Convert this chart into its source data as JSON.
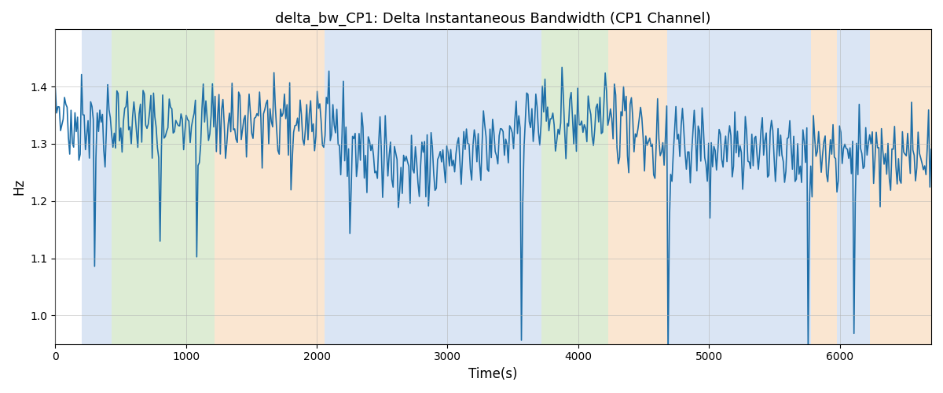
{
  "title": "delta_bw_CP1: Delta Instantaneous Bandwidth (CP1 Channel)",
  "xlabel": "Time(s)",
  "ylabel": "Hz",
  "xlim": [
    0,
    6700
  ],
  "ylim": [
    0.95,
    1.5
  ],
  "line_color": "#1f6fa8",
  "line_width": 1.2,
  "background_color": "#ffffff",
  "grid_color": "#b0b0b0",
  "bands": [
    {
      "xmin": 200,
      "xmax": 430,
      "color": "#aec6e8",
      "alpha": 0.45
    },
    {
      "xmin": 430,
      "xmax": 1220,
      "color": "#b5d5a0",
      "alpha": 0.45
    },
    {
      "xmin": 1220,
      "xmax": 2060,
      "color": "#f5c99a",
      "alpha": 0.45
    },
    {
      "xmin": 2060,
      "xmax": 3580,
      "color": "#aec6e8",
      "alpha": 0.45
    },
    {
      "xmin": 3580,
      "xmax": 3720,
      "color": "#aec6e8",
      "alpha": 0.45
    },
    {
      "xmin": 3720,
      "xmax": 4230,
      "color": "#b5d5a0",
      "alpha": 0.45
    },
    {
      "xmin": 4230,
      "xmax": 4680,
      "color": "#f5c99a",
      "alpha": 0.45
    },
    {
      "xmin": 4680,
      "xmax": 5780,
      "color": "#aec6e8",
      "alpha": 0.45
    },
    {
      "xmin": 5780,
      "xmax": 5980,
      "color": "#f5c99a",
      "alpha": 0.45
    },
    {
      "xmin": 5980,
      "xmax": 6230,
      "color": "#aec6e8",
      "alpha": 0.45
    },
    {
      "xmin": 6230,
      "xmax": 6700,
      "color": "#f5c99a",
      "alpha": 0.45
    }
  ],
  "seed": 42,
  "n_points": 670,
  "figsize": [
    12.0,
    5.0
  ],
  "dpi": 100
}
